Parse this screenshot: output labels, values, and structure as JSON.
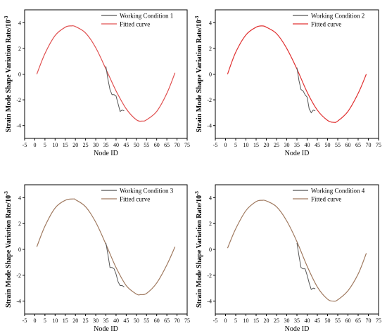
{
  "chart_data": [
    {
      "type": "line",
      "xlabel": "Node ID",
      "ylabel": "Strain Mode Shape Variation Rate/10",
      "ylabel_exponent": "-3",
      "xlim": [
        -5,
        75
      ],
      "ylim": [
        -5,
        5
      ],
      "x_ticks": [
        "-5",
        "0",
        "5",
        "10",
        "15",
        "20",
        "25",
        "30",
        "35",
        "40",
        "45",
        "50",
        "55",
        "60",
        "65",
        "70",
        "75"
      ],
      "y_ticks": [
        "4",
        "2",
        "0",
        "-2",
        "-4"
      ],
      "legend_position": "top-right",
      "series": [
        {
          "name": "Working Condition 1",
          "color": "#555555",
          "x": [
            35,
            36,
            37,
            38,
            39,
            40,
            41,
            42,
            43,
            44
          ],
          "y": [
            0.6,
            -0.4,
            -1.2,
            -1.6,
            -1.6,
            -1.7,
            -2.3,
            -2.9,
            -2.8,
            -2.85
          ]
        },
        {
          "name": "Fitted curve",
          "color": "#e05050",
          "x": [
            1,
            5,
            10,
            15,
            18,
            20,
            25,
            30,
            35,
            40,
            45,
            50,
            53,
            55,
            60,
            65,
            69
          ],
          "y": [
            0.0,
            1.6,
            3.0,
            3.65,
            3.75,
            3.7,
            3.2,
            2.05,
            0.4,
            -1.3,
            -2.7,
            -3.55,
            -3.65,
            -3.55,
            -2.9,
            -1.5,
            0.1
          ]
        }
      ]
    },
    {
      "type": "line",
      "xlabel": "Node ID",
      "ylabel": "Strain Mode Shape Variation Rate/10",
      "ylabel_exponent": "-3",
      "xlim": [
        -5,
        75
      ],
      "ylim": [
        -5,
        5
      ],
      "x_ticks": [
        "-5",
        "0",
        "5",
        "10",
        "15",
        "20",
        "25",
        "30",
        "35",
        "40",
        "45",
        "50",
        "55",
        "60",
        "65",
        "70",
        "75"
      ],
      "y_ticks": [
        "4",
        "2",
        "0",
        "-2",
        "-4"
      ],
      "legend_position": "top-right",
      "series": [
        {
          "name": "Working Condition 2",
          "color": "#555555",
          "x": [
            35,
            36,
            37,
            38,
            39,
            40,
            41,
            42,
            43,
            44
          ],
          "y": [
            0.5,
            -0.5,
            -1.2,
            -1.3,
            -1.6,
            -1.8,
            -2.7,
            -3.0,
            -2.8,
            -2.85
          ]
        },
        {
          "name": "Fitted curve",
          "color": "#e03030",
          "x": [
            1,
            5,
            10,
            15,
            18,
            20,
            25,
            30,
            35,
            40,
            45,
            50,
            53,
            55,
            60,
            65,
            69
          ],
          "y": [
            0.0,
            1.7,
            3.05,
            3.65,
            3.75,
            3.65,
            3.15,
            2.0,
            0.4,
            -1.4,
            -2.8,
            -3.6,
            -3.75,
            -3.65,
            -2.9,
            -1.5,
            0.0
          ]
        }
      ]
    },
    {
      "type": "line",
      "xlabel": "Node ID",
      "ylabel": "Strain Mode Shape Variation Rate/10",
      "ylabel_exponent": "-3",
      "xlim": [
        -5,
        75
      ],
      "ylim": [
        -5,
        5
      ],
      "x_ticks": [
        "-5",
        "0",
        "5",
        "10",
        "15",
        "20",
        "25",
        "30",
        "35",
        "40",
        "45",
        "50",
        "55",
        "60",
        "65",
        "70",
        "75"
      ],
      "y_ticks": [
        "4",
        "2",
        "0",
        "-2",
        "-4"
      ],
      "legend_position": "top-right",
      "series": [
        {
          "name": "Working Condition 3",
          "color": "#555555",
          "x": [
            35,
            36,
            37,
            38,
            39,
            40,
            41,
            42,
            43,
            44
          ],
          "y": [
            0.5,
            -0.4,
            -1.4,
            -1.4,
            -1.5,
            -1.9,
            -2.5,
            -2.8,
            -2.8,
            -2.9
          ]
        },
        {
          "name": "Fitted curve",
          "color": "#a07a60",
          "x": [
            1,
            5,
            10,
            15,
            19,
            20,
            25,
            30,
            35,
            40,
            45,
            50,
            52,
            55,
            60,
            65,
            69
          ],
          "y": [
            0.2,
            1.8,
            3.2,
            3.8,
            3.9,
            3.85,
            3.3,
            2.1,
            0.4,
            -1.4,
            -2.8,
            -3.45,
            -3.5,
            -3.4,
            -2.6,
            -1.2,
            0.2
          ]
        }
      ]
    },
    {
      "type": "line",
      "xlabel": "Node ID",
      "ylabel": "Strain Mode Shape Variation Rate/10",
      "ylabel_exponent": "-3",
      "xlim": [
        -5,
        75
      ],
      "ylim": [
        -5,
        5
      ],
      "x_ticks": [
        "-5",
        "0",
        "5",
        "10",
        "15",
        "20",
        "25",
        "30",
        "35",
        "40",
        "45",
        "50",
        "55",
        "60",
        "65",
        "70",
        "75"
      ],
      "y_ticks": [
        "4",
        "2",
        "0",
        "-2",
        "-4"
      ],
      "legend_position": "top-right",
      "series": [
        {
          "name": "Working Condition 4",
          "color": "#555555",
          "x": [
            35,
            36,
            37,
            38,
            39,
            40,
            41,
            42,
            43,
            44
          ],
          "y": [
            0.5,
            -0.5,
            -1.4,
            -1.5,
            -1.5,
            -2.0,
            -2.6,
            -3.1,
            -3.0,
            -3.05
          ]
        },
        {
          "name": "Fitted curve",
          "color": "#a07a60",
          "x": [
            1,
            5,
            10,
            15,
            18,
            20,
            25,
            30,
            35,
            40,
            45,
            50,
            53,
            55,
            60,
            65,
            69
          ],
          "y": [
            0.1,
            1.6,
            3.0,
            3.7,
            3.8,
            3.75,
            3.3,
            2.2,
            0.6,
            -1.3,
            -2.9,
            -3.85,
            -4.0,
            -3.9,
            -3.2,
            -1.9,
            -0.3
          ]
        }
      ]
    }
  ]
}
